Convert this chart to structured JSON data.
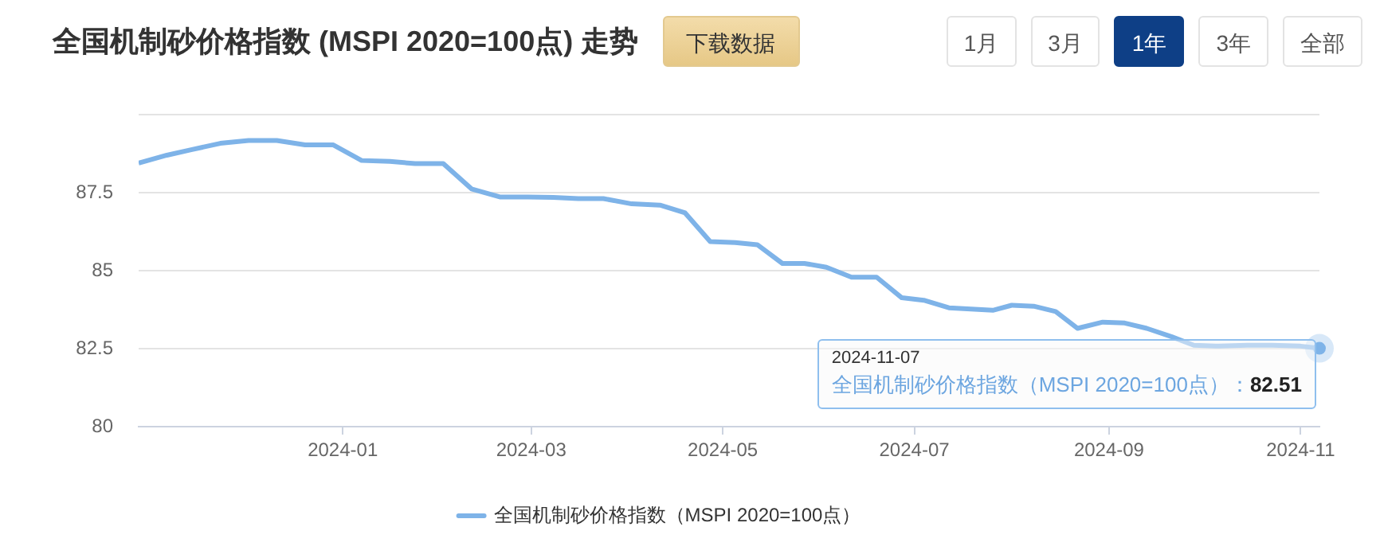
{
  "chart_data": {
    "type": "line",
    "title": "全国机制砂价格指数 (MSPI 2020=100点) 走势",
    "annotations": [
      "下载数据",
      "1月",
      "3月",
      "1年",
      "3年",
      "全部",
      {
        "text": "2024-11-07\n全国机制砂价格指数（MSPI 2020=100点）：82.51",
        "x": "2024-11-07",
        "y": 82.51
      }
    ],
    "x": [
      "2023-10-28",
      "2023-11-06",
      "2023-11-14",
      "2023-11-23",
      "2023-12-02",
      "2023-12-11",
      "2023-12-20",
      "2023-12-29",
      "2024-01-07",
      "2024-01-16",
      "2024-01-24",
      "2024-02-02",
      "2024-02-11",
      "2024-02-20",
      "2024-02-29",
      "2024-03-08",
      "2024-03-16",
      "2024-03-24",
      "2024-04-02",
      "2024-04-11",
      "2024-04-19",
      "2024-04-27",
      "2024-05-05",
      "2024-05-12",
      "2024-05-20",
      "2024-05-27",
      "2024-06-03",
      "2024-06-11",
      "2024-06-19",
      "2024-06-27",
      "2024-07-04",
      "2024-07-12",
      "2024-07-19",
      "2024-07-26",
      "2024-08-01",
      "2024-08-08",
      "2024-08-15",
      "2024-08-22",
      "2024-08-30",
      "2024-09-06",
      "2024-09-13",
      "2024-09-21",
      "2024-09-28",
      "2024-10-06",
      "2024-10-15",
      "2024-10-23",
      "2024-11-01",
      "2024-11-07"
    ],
    "series": [
      {
        "name": "全国机制砂价格指数（MSPI 2020=100点）",
        "color": "#7eb3e8",
        "values": [
          88.45,
          88.7,
          88.88,
          89.08,
          89.17,
          89.17,
          89.03,
          89.03,
          88.53,
          88.5,
          88.43,
          88.43,
          87.62,
          87.36,
          87.36,
          87.35,
          87.31,
          87.31,
          87.14,
          87.1,
          86.85,
          85.93,
          85.9,
          85.83,
          85.23,
          85.23,
          85.11,
          84.79,
          84.79,
          84.13,
          84.05,
          83.81,
          83.77,
          83.73,
          83.89,
          83.86,
          83.69,
          83.15,
          83.35,
          83.32,
          83.15,
          82.88,
          82.61,
          82.58,
          82.61,
          82.61,
          82.58,
          82.51
        ]
      }
    ],
    "xlim": [
      "2023-10-28",
      "2024-11-07"
    ],
    "xticks": [
      "2024-01",
      "2024-03",
      "2024-05",
      "2024-07",
      "2024-09",
      "2024-11"
    ],
    "ylim": [
      80,
      90
    ],
    "yticks": [
      80,
      82.5,
      85,
      87.5,
      {
        "value": 90,
        "label": null
      }
    ],
    "grid": "y",
    "legend": "bottom",
    "marker": "none",
    "line_style": "solid"
  }
}
